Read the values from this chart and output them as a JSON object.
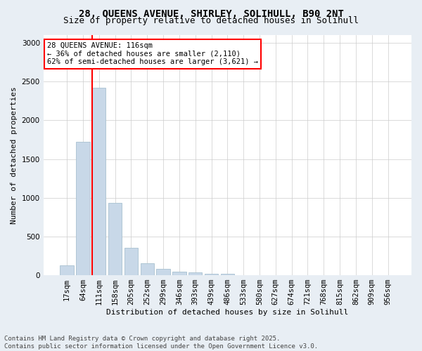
{
  "title_line1": "28, QUEENS AVENUE, SHIRLEY, SOLIHULL, B90 2NT",
  "title_line2": "Size of property relative to detached houses in Solihull",
  "xlabel": "Distribution of detached houses by size in Solihull",
  "ylabel": "Number of detached properties",
  "footnote1": "Contains HM Land Registry data © Crown copyright and database right 2025.",
  "footnote2": "Contains public sector information licensed under the Open Government Licence v3.0.",
  "bar_labels": [
    "17sqm",
    "64sqm",
    "111sqm",
    "158sqm",
    "205sqm",
    "252sqm",
    "299sqm",
    "346sqm",
    "393sqm",
    "439sqm",
    "486sqm",
    "533sqm",
    "580sqm",
    "627sqm",
    "674sqm",
    "721sqm",
    "768sqm",
    "815sqm",
    "862sqm",
    "909sqm",
    "956sqm"
  ],
  "bar_values": [
    130,
    1720,
    2420,
    930,
    350,
    155,
    85,
    48,
    38,
    20,
    20,
    0,
    0,
    0,
    0,
    0,
    0,
    0,
    0,
    0,
    0
  ],
  "bar_color": "#c8d8e8",
  "bar_edgecolor": "#a8c0d0",
  "highlight_bar_index": 2,
  "highlight_color": "red",
  "ylim": [
    0,
    3100
  ],
  "yticks": [
    0,
    500,
    1000,
    1500,
    2000,
    2500,
    3000
  ],
  "annotation_text": "28 QUEENS AVENUE: 116sqm\n← 36% of detached houses are smaller (2,110)\n62% of semi-detached houses are larger (3,621) →",
  "annotation_box_color": "white",
  "annotation_box_edgecolor": "red",
  "background_color": "#e8eef4",
  "plot_background": "white",
  "grid_color": "#cccccc",
  "title_fontsize": 10,
  "subtitle_fontsize": 9,
  "axis_label_fontsize": 8,
  "tick_label_fontsize": 7.5,
  "annotation_fontsize": 7.5,
  "footnote_fontsize": 6.5
}
